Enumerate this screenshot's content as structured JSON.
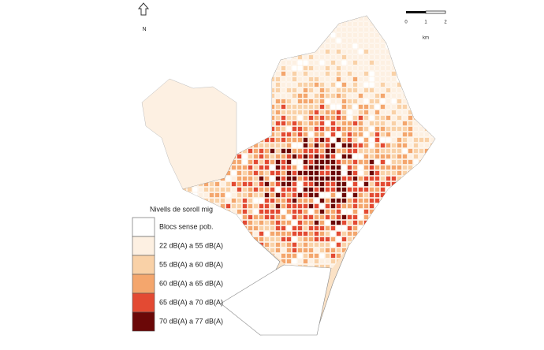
{
  "north_label": "N",
  "scale_bar": {
    "labels": [
      "0",
      "1",
      "2"
    ],
    "unit": "km"
  },
  "legend": {
    "title": "Nivells de soroll mig",
    "items": [
      {
        "label": "Blocs sense pob.",
        "color": "#ffffff"
      },
      {
        "label": "22 dB(A) a 55 dB(A)",
        "color": "#fdf0e2"
      },
      {
        "label": "55 dB(A) a 60 dB(A)",
        "color": "#f9d1a7"
      },
      {
        "label": "60 dB(A) a 65 dB(A)",
        "color": "#f4a66d"
      },
      {
        "label": "65 dB(A) a 70 dB(A)",
        "color": "#e34a33"
      },
      {
        "label": "70 dB(A) a 77 dB(A)",
        "color": "#6b0808"
      }
    ]
  }
}
